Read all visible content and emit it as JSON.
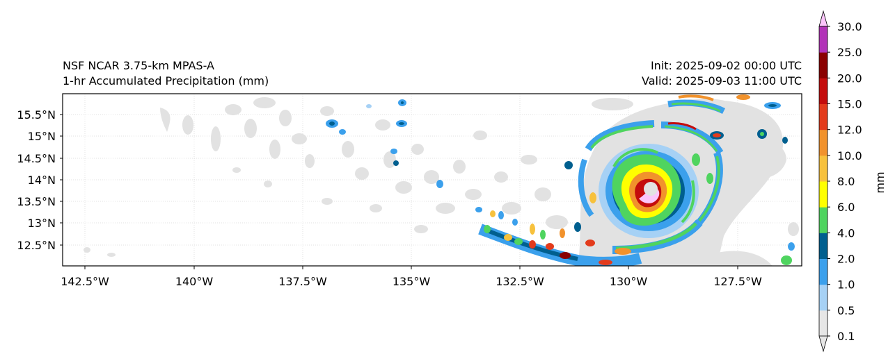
{
  "header": {
    "model_name": "NSF NCAR 3.75-km MPAS-A",
    "field_name": "1-hr Accumulated Precipitation (mm)",
    "init_time": "Init: 2025-09-02 00:00 UTC",
    "valid_time": "Valid: 2025-09-03 11:00 UTC"
  },
  "map": {
    "lon_ticks": [
      "142.5°W",
      "140°W",
      "137.5°W",
      "135°W",
      "132.5°W",
      "130°W",
      "127.5°W"
    ],
    "lat_ticks": [
      "15.5°N",
      "15°N",
      "14.5°N",
      "14°N",
      "13.5°N",
      "13°N",
      "12.5°N"
    ],
    "gridlines": true
  },
  "colorbar": {
    "unit_label": "mm",
    "levels": [
      "0.1",
      "0.5",
      "1.0",
      "2.0",
      "4.0",
      "6.0",
      "8.0",
      "10.0",
      "12.0",
      "15.0",
      "20.0",
      "25.0",
      "30.0"
    ],
    "colors": [
      "#e6e6e6",
      "#a6d1f5",
      "#3ba0ec",
      "#005f8f",
      "#4fd45f",
      "#ffff00",
      "#f7c13c",
      "#f1922c",
      "#e33b1c",
      "#c40c0c",
      "#8a0000",
      "#b233b8",
      "#fbc5fb"
    ]
  },
  "precip_palette": {
    "light": "#e6e6e6",
    "very_light_blue": "#a6d1f5",
    "blue": "#3ba0ec",
    "dark_teal": "#005f8f",
    "green": "#4fd45f",
    "yellow": "#ffff00",
    "orange": "#f1922c",
    "red": "#e33b1c",
    "dark_red": "#8a0000",
    "magenta": "#b233b8",
    "pink": "#fbc5fb"
  }
}
